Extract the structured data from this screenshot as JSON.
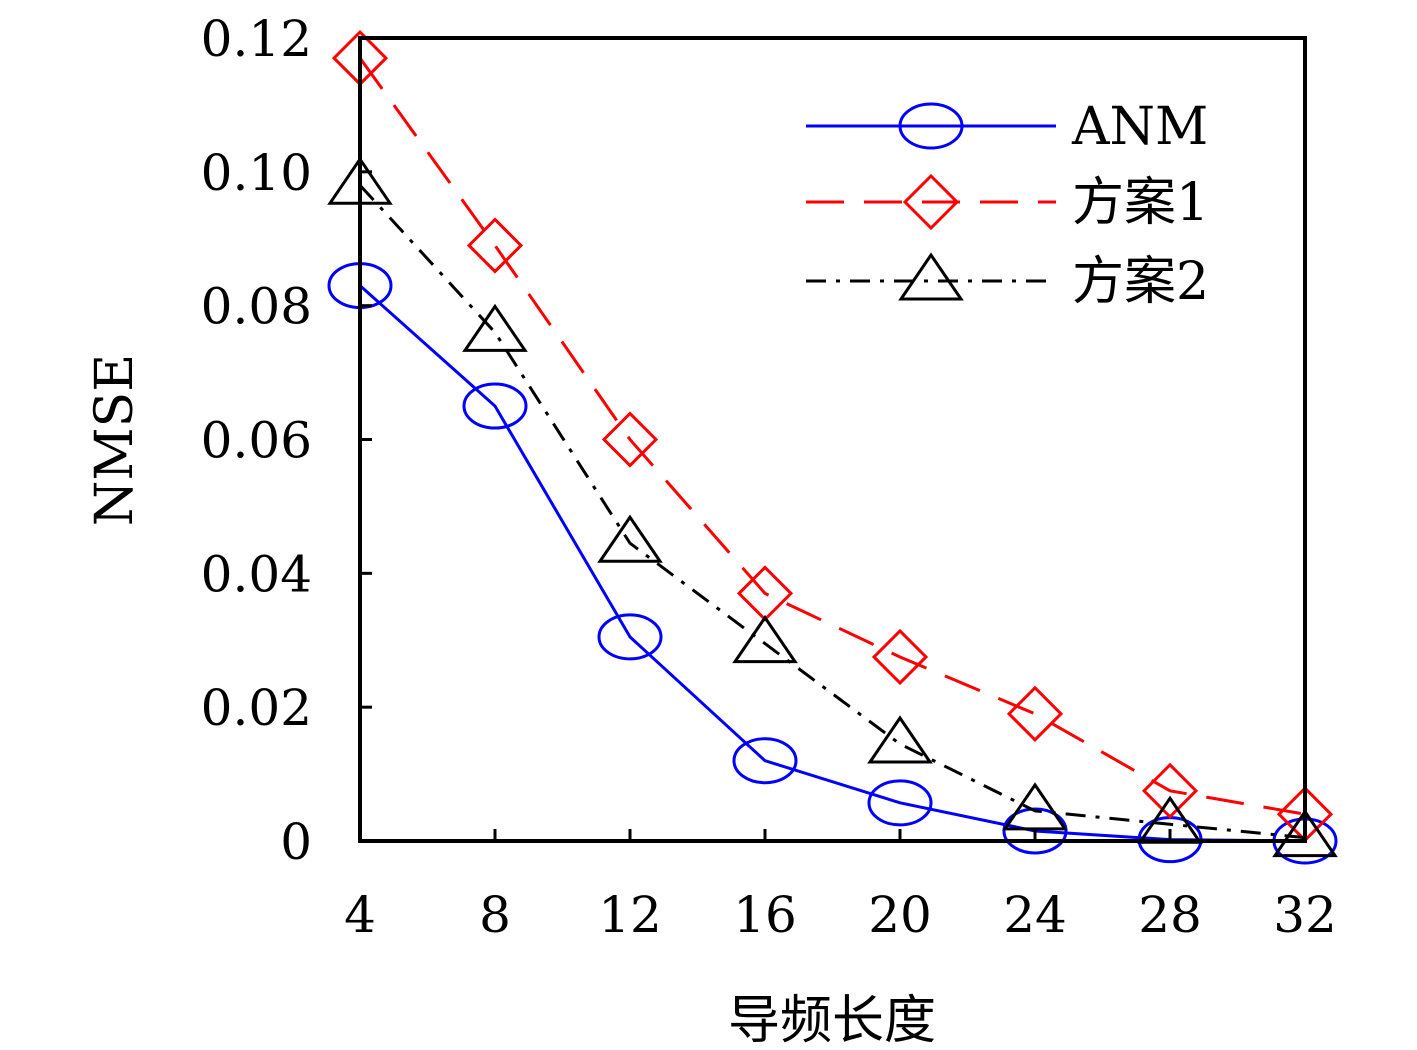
{
  "chart_data": {
    "type": "line",
    "xlabel": "导频长度",
    "ylabel": "NMSE",
    "x": [
      4,
      8,
      12,
      16,
      20,
      24,
      28,
      32
    ],
    "xlim": [
      4,
      32
    ],
    "ylim": [
      0,
      0.12
    ],
    "x_ticks": [
      "4",
      "8",
      "12",
      "16",
      "20",
      "24",
      "28",
      "32"
    ],
    "y_ticks": [
      "0",
      "0.02",
      "0.04",
      "0.06",
      "0.08",
      "0.10",
      "0.12"
    ],
    "y_tick_values": [
      0,
      0.02,
      0.04,
      0.06,
      0.08,
      0.1,
      0.12
    ],
    "grid": false,
    "legend_position": "top-right",
    "series": [
      {
        "name": "ANM",
        "values": [
          0.083,
          0.065,
          0.0305,
          0.012,
          0.0057,
          0.0015,
          0.0002,
          0.0
        ],
        "color": "#0000ff",
        "line_style": "solid",
        "marker": "circle"
      },
      {
        "name": "方案1",
        "values": [
          0.117,
          0.089,
          0.06,
          0.037,
          0.0275,
          0.019,
          0.0075,
          0.004
        ],
        "color": "#ff0000",
        "line_style": "dashed",
        "marker": "diamond"
      },
      {
        "name": "方案2",
        "values": [
          0.098,
          0.076,
          0.0445,
          0.0295,
          0.0145,
          0.0045,
          0.0025,
          0.0005
        ],
        "color": "#000000",
        "line_style": "dash-dot",
        "marker": "triangle"
      }
    ]
  }
}
